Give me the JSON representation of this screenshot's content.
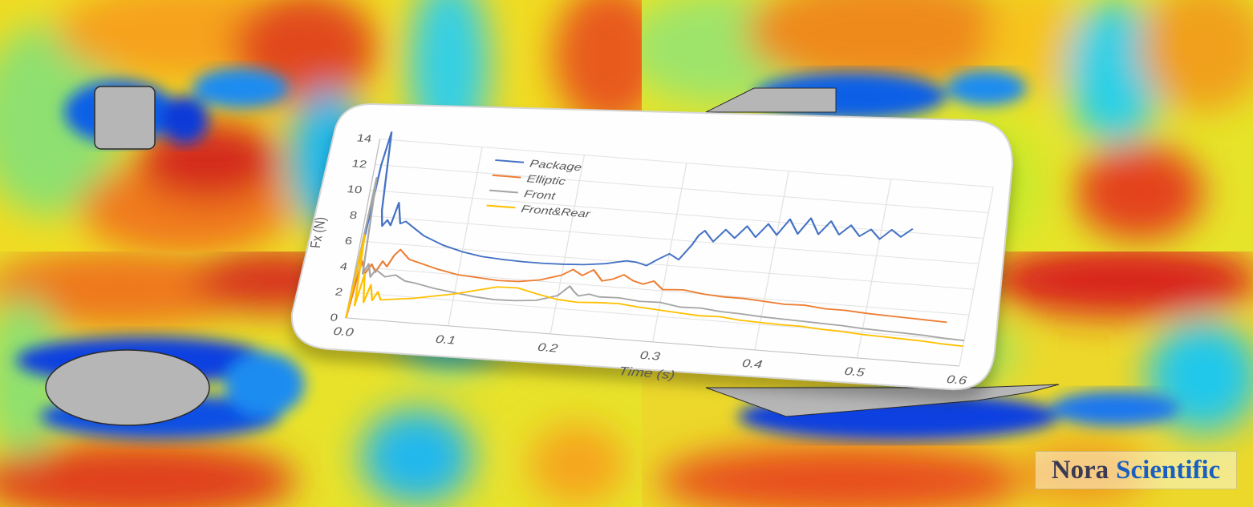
{
  "colors": {
    "field_palette": [
      "#0a2fd6",
      "#0a8cf0",
      "#18d2e0",
      "#6ee08a",
      "#d6ec2c",
      "#f5d418",
      "#f39a18",
      "#e8501e",
      "#d21a1a"
    ],
    "obstacle": "#b6b6b6"
  },
  "background_panels": [
    "square-cylinder",
    "front-fairing",
    "elliptic-cylinder",
    "front-rear-fairing"
  ],
  "chart_data": {
    "type": "line",
    "xlabel": "Time (s)",
    "ylabel": "Fx (N)",
    "xlim": [
      0,
      0.6
    ],
    "ylim": [
      0,
      14
    ],
    "xticks": [
      "0.0",
      "0.1",
      "0.2",
      "0.3",
      "0.4",
      "0.5",
      "0.6"
    ],
    "yticks": [
      "0",
      "2",
      "4",
      "6",
      "8",
      "10",
      "12",
      "14"
    ],
    "grid": true,
    "legend_position": "top-left",
    "series": [
      {
        "name": "Package",
        "color": "#4472c4",
        "x": [
          0.0,
          0.003,
          0.006,
          0.01,
          0.015,
          0.018,
          0.022,
          0.026,
          0.03,
          0.035,
          0.04,
          0.05,
          0.06,
          0.08,
          0.1,
          0.12,
          0.14,
          0.16,
          0.18,
          0.2,
          0.22,
          0.24,
          0.26,
          0.27,
          0.28,
          0.29,
          0.3,
          0.31,
          0.32,
          0.325,
          0.33,
          0.34,
          0.35,
          0.36,
          0.37,
          0.38,
          0.39,
          0.4,
          0.41,
          0.42,
          0.43,
          0.44,
          0.45,
          0.46,
          0.47,
          0.48,
          0.49,
          0.5,
          0.51,
          0.52,
          0.53
        ],
        "y": [
          0,
          6,
          12,
          14.6,
          8.5,
          7.3,
          7.8,
          7.4,
          9.2,
          7.6,
          7.8,
          7.3,
          6.8,
          6.2,
          5.8,
          5.55,
          5.45,
          5.4,
          5.4,
          5.45,
          5.55,
          5.75,
          6.1,
          6.05,
          5.85,
          6.4,
          6.9,
          6.5,
          7.7,
          8.5,
          8.9,
          8.1,
          9.1,
          8.5,
          9.5,
          8.7,
          9.8,
          9.0,
          10.3,
          9.2,
          10.5,
          9.3,
          10.4,
          9.4,
          10.2,
          9.4,
          10.0,
          9.3,
          10.1,
          9.6,
          10.3
        ]
      },
      {
        "name": "Elliptic",
        "color": "#ed7d31",
        "x": [
          0.0,
          0.005,
          0.01,
          0.015,
          0.02,
          0.025,
          0.03,
          0.035,
          0.04,
          0.05,
          0.06,
          0.08,
          0.1,
          0.12,
          0.14,
          0.16,
          0.18,
          0.2,
          0.21,
          0.22,
          0.23,
          0.24,
          0.25,
          0.26,
          0.27,
          0.28,
          0.29,
          0.3,
          0.32,
          0.34,
          0.36,
          0.38,
          0.4,
          0.42,
          0.44,
          0.46,
          0.48,
          0.5,
          0.52,
          0.54,
          0.56,
          0.58
        ],
        "y": [
          0,
          4.5,
          3.5,
          4.3,
          3.7,
          4.6,
          4.2,
          5.1,
          5.6,
          4.9,
          4.7,
          4.3,
          4.0,
          3.9,
          3.8,
          3.85,
          4.1,
          4.6,
          5.1,
          4.7,
          5.2,
          4.4,
          4.6,
          5.0,
          4.6,
          4.4,
          4.7,
          4.1,
          4.2,
          4.0,
          3.9,
          3.9,
          3.8,
          3.7,
          3.75,
          3.6,
          3.6,
          3.5,
          3.45,
          3.4,
          3.35,
          3.3
        ]
      },
      {
        "name": "Front",
        "color": "#a5a5a5",
        "x": [
          0.0,
          0.004,
          0.008,
          0.012,
          0.016,
          0.02,
          0.03,
          0.04,
          0.05,
          0.06,
          0.08,
          0.1,
          0.12,
          0.14,
          0.16,
          0.18,
          0.2,
          0.21,
          0.215,
          0.22,
          0.23,
          0.24,
          0.26,
          0.28,
          0.3,
          0.32,
          0.34,
          0.36,
          0.38,
          0.4,
          0.42,
          0.44,
          0.46,
          0.48,
          0.5,
          0.52,
          0.54,
          0.56,
          0.58,
          0.6
        ],
        "y": [
          0,
          11,
          3.5,
          4.3,
          3.3,
          3.9,
          3.4,
          3.6,
          3.2,
          3.1,
          2.8,
          2.6,
          2.4,
          2.3,
          2.35,
          2.5,
          3.0,
          3.8,
          3.4,
          3.1,
          3.3,
          3.15,
          3.2,
          3.05,
          3.1,
          2.85,
          2.9,
          2.75,
          2.7,
          2.6,
          2.55,
          2.5,
          2.45,
          2.4,
          2.3,
          2.25,
          2.2,
          2.15,
          2.05,
          2.0
        ]
      },
      {
        "name": "Front&Rear",
        "color": "#ffc000",
        "x": [
          0.0,
          0.003,
          0.006,
          0.01,
          0.014,
          0.018,
          0.022,
          0.026,
          0.03,
          0.04,
          0.06,
          0.08,
          0.1,
          0.12,
          0.14,
          0.16,
          0.18,
          0.2,
          0.22,
          0.24,
          0.26,
          0.28,
          0.3,
          0.32,
          0.34,
          0.36,
          0.38,
          0.4,
          0.42,
          0.44,
          0.46,
          0.48,
          0.5,
          0.52,
          0.54,
          0.56,
          0.58,
          0.6
        ],
        "y": [
          0,
          6.5,
          1.0,
          3.5,
          1.3,
          2.7,
          1.5,
          2.2,
          1.6,
          1.7,
          1.9,
          2.2,
          2.5,
          2.9,
          3.3,
          3.35,
          3.0,
          2.7,
          2.6,
          2.7,
          2.75,
          2.6,
          2.5,
          2.4,
          2.3,
          2.35,
          2.2,
          2.15,
          2.1,
          2.1,
          2.0,
          1.95,
          1.85,
          1.8,
          1.75,
          1.7,
          1.6,
          1.55
        ]
      }
    ]
  },
  "brand": {
    "word1": "Nora",
    "word2": "Scientific"
  }
}
